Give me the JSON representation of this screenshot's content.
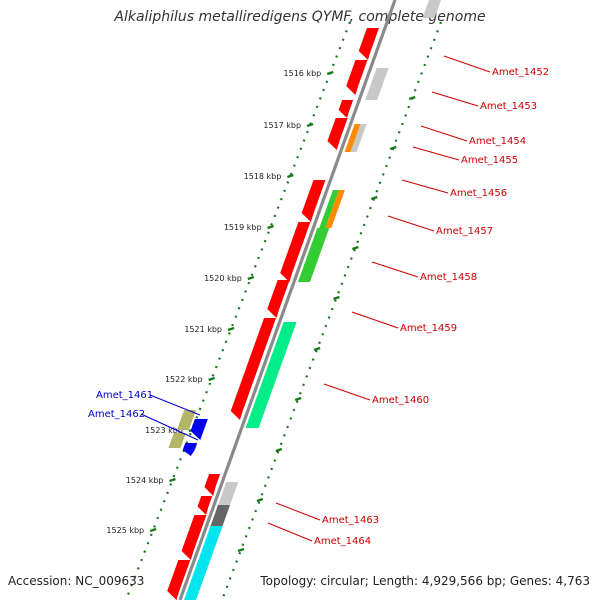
{
  "title": "Alkaliphilus metalliredigens QYMF, complete genome",
  "accession": "Accession: NC_009633",
  "summary": "Topology: circular; Length: 4,929,566 bp; Genes: 4,763",
  "colors": {
    "backbone": "#8a8a8a",
    "tick": "#1a7a1a",
    "forward_cds": "#ff0000",
    "grey": "#c8c8c8",
    "dark_grey": "#666666",
    "orange": "#ff8c00",
    "green": "#33cc33",
    "spring_green": "#00ee88",
    "cyan": "#00e5ee",
    "olive": "#b5b56a",
    "blue": "#0000ee",
    "label_red": "#cc0000",
    "label_blue": "#0000cc"
  },
  "ticks": [
    "1516 kbp",
    "1517 kbp",
    "1518 kbp",
    "1519 kbp",
    "1520 kbp",
    "1521 kbp",
    "1522 kbp",
    "1523 kbp",
    "1524 kbp",
    "1525 kbp"
  ],
  "gene_labels": [
    {
      "text": "Amet_1452",
      "color": "red"
    },
    {
      "text": "Amet_1453",
      "color": "red"
    },
    {
      "text": "Amet_1454",
      "color": "red"
    },
    {
      "text": "Amet_1455",
      "color": "red"
    },
    {
      "text": "Amet_1456",
      "color": "red"
    },
    {
      "text": "Amet_1457",
      "color": "red"
    },
    {
      "text": "Amet_1458",
      "color": "red"
    },
    {
      "text": "Amet_1459",
      "color": "red"
    },
    {
      "text": "Amet_1460",
      "color": "red"
    },
    {
      "text": "Amet_1461",
      "color": "blue"
    },
    {
      "text": "Amet_1462",
      "color": "blue"
    },
    {
      "text": "Amet_1463",
      "color": "red"
    },
    {
      "text": "Amet_1464",
      "color": "red"
    }
  ]
}
